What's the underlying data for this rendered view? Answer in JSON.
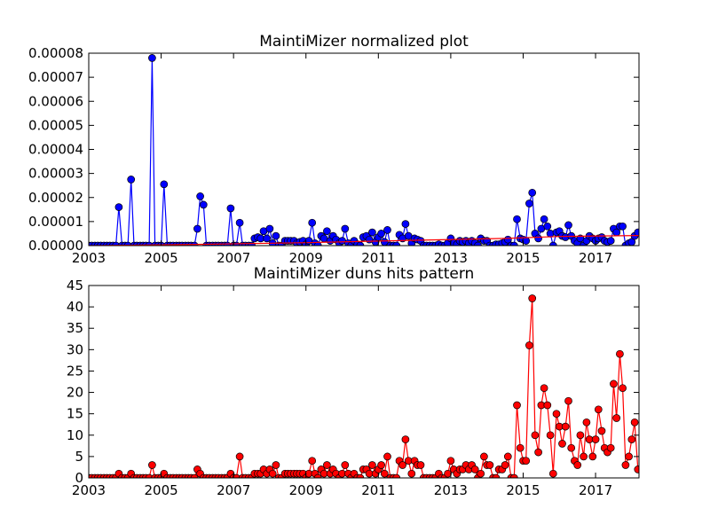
{
  "chart_data": [
    {
      "type": "line",
      "title": "MaintiMizer normalized plot",
      "xlim": [
        2003.0,
        2018.2
      ],
      "ylim": [
        0,
        8e-05
      ],
      "xticks": [
        "2003",
        "2005",
        "2007",
        "2009",
        "2011",
        "2013",
        "2015",
        "2017"
      ],
      "yticks": [
        "0.00000",
        "0.00001",
        "0.00002",
        "0.00003",
        "0.00004",
        "0.00005",
        "0.00006",
        "0.00007",
        "0.00008"
      ],
      "grid": false,
      "series": [
        {
          "color": "#0000ff",
          "marker": "circle",
          "x": [
            2003.0,
            2003.08,
            2003.17,
            2003.25,
            2003.33,
            2003.42,
            2003.5,
            2003.58,
            2003.67,
            2003.75,
            2003.83,
            2003.92,
            2004.0,
            2004.08,
            2004.17,
            2004.25,
            2004.33,
            2004.42,
            2004.5,
            2004.58,
            2004.67,
            2004.75,
            2004.83,
            2004.92,
            2005.0,
            2005.08,
            2005.17,
            2005.25,
            2005.33,
            2005.42,
            2005.5,
            2005.58,
            2005.67,
            2005.75,
            2005.83,
            2005.92,
            2006.0,
            2006.08,
            2006.17,
            2006.25,
            2006.33,
            2006.42,
            2006.5,
            2006.58,
            2006.67,
            2006.75,
            2006.83,
            2006.92,
            2007.0,
            2007.08,
            2007.17,
            2007.25,
            2007.33,
            2007.42,
            2007.5,
            2007.58,
            2007.67,
            2007.75,
            2007.83,
            2007.92,
            2008.0,
            2008.08,
            2008.17,
            2008.25,
            2008.33,
            2008.42,
            2008.5,
            2008.58,
            2008.67,
            2008.75,
            2008.83,
            2008.92,
            2009.0,
            2009.08,
            2009.17,
            2009.25,
            2009.33,
            2009.42,
            2009.5,
            2009.58,
            2009.67,
            2009.75,
            2009.83,
            2009.92,
            2010.0,
            2010.08,
            2010.17,
            2010.25,
            2010.33,
            2010.42,
            2010.5,
            2010.58,
            2010.67,
            2010.75,
            2010.83,
            2010.92,
            2011.0,
            2011.08,
            2011.17,
            2011.25,
            2011.33,
            2011.42,
            2011.5,
            2011.58,
            2011.67,
            2011.75,
            2011.83,
            2011.92,
            2012.0,
            2012.08,
            2012.17,
            2012.25,
            2012.33,
            2012.42,
            2012.5,
            2012.58,
            2012.67,
            2012.75,
            2012.83,
            2012.92,
            2013.0,
            2013.08,
            2013.17,
            2013.25,
            2013.33,
            2013.42,
            2013.5,
            2013.58,
            2013.67,
            2013.75,
            2013.83,
            2013.92,
            2014.0,
            2014.08,
            2014.17,
            2014.25,
            2014.33,
            2014.42,
            2014.5,
            2014.58,
            2014.67,
            2014.75,
            2014.83,
            2014.92,
            2015.0,
            2015.08,
            2015.17,
            2015.25,
            2015.33,
            2015.42,
            2015.5,
            2015.58,
            2015.67,
            2015.75,
            2015.83,
            2015.92,
            2016.0,
            2016.08,
            2016.17,
            2016.25,
            2016.33,
            2016.42,
            2016.5,
            2016.58,
            2016.67,
            2016.75,
            2016.83,
            2016.92,
            2017.0,
            2017.08,
            2017.17,
            2017.25,
            2017.33,
            2017.42,
            2017.5,
            2017.58,
            2017.67,
            2017.75,
            2017.83,
            2017.92,
            2018.0,
            2018.08,
            2018.17
          ],
          "y": [
            0,
            0,
            0,
            0,
            0,
            0,
            0,
            0,
            0,
            0,
            1.6e-05,
            0,
            0,
            0,
            2.75e-05,
            0,
            0,
            0,
            0,
            0,
            0,
            7.8e-05,
            0,
            0,
            0,
            2.55e-05,
            0,
            0,
            0,
            0,
            0,
            0,
            0,
            0,
            0,
            0,
            7e-06,
            2.05e-05,
            1.7e-05,
            0,
            0,
            0,
            0,
            0,
            0,
            0,
            0,
            1.55e-05,
            0,
            0,
            9.5e-06,
            0,
            0,
            0,
            0,
            3e-06,
            3.5e-06,
            3e-06,
            6e-06,
            3e-06,
            7e-06,
            1e-06,
            4e-06,
            0,
            0,
            2e-06,
            2e-06,
            2e-06,
            2e-06,
            1e-06,
            1.5e-06,
            2e-06,
            5e-07,
            2e-06,
            9.5e-06,
            1e-06,
            0,
            4e-06,
            3e-06,
            6e-06,
            2e-06,
            4e-06,
            2.5e-06,
            1e-06,
            2e-06,
            7e-06,
            1e-06,
            0,
            2e-06,
            5e-07,
            0,
            3.5e-06,
            4e-06,
            2.5e-06,
            5.5e-06,
            1.5e-06,
            3.5e-06,
            5e-06,
            1.5e-06,
            6.5e-06,
            0,
            0,
            0,
            4.5e-06,
            3e-06,
            9e-06,
            4e-06,
            1e-06,
            3e-06,
            2.5e-06,
            2e-06,
            0,
            0,
            0,
            0,
            0,
            5e-07,
            0,
            0,
            1e-06,
            3e-06,
            1e-06,
            5e-07,
            2e-06,
            1.5e-06,
            2e-06,
            1e-06,
            2e-06,
            1e-06,
            0,
            3e-06,
            2e-06,
            2e-06,
            0,
            0,
            5e-07,
            5e-07,
            1e-06,
            1.5e-06,
            2.5e-06,
            0,
            0,
            1.1e-05,
            3e-06,
            2.5e-06,
            2e-06,
            1.75e-05,
            2.2e-05,
            5e-06,
            3e-06,
            7e-06,
            1.1e-05,
            8e-06,
            5e-06,
            0,
            5.5e-06,
            6e-06,
            4e-06,
            3.5e-06,
            8.5e-06,
            4e-06,
            2e-06,
            1e-06,
            3e-06,
            0,
            2e-06,
            4e-06,
            3e-06,
            2e-06,
            3e-06,
            3.5e-06,
            2e-06,
            1.5e-06,
            2e-06,
            7e-06,
            5.5e-06,
            8e-06,
            8e-06,
            0,
            1e-06,
            1.5e-06,
            4e-06,
            5.5e-06
          ]
        },
        {
          "color": "#ff0000",
          "marker": "none",
          "x": [
            2003.0,
            2006.0,
            2009.0,
            2012.0,
            2014.5,
            2016.0,
            2018.2
          ],
          "y": [
            0,
            5e-07,
            1.2e-06,
            2.2e-06,
            3e-06,
            3.8e-06,
            4.2e-06
          ]
        }
      ]
    },
    {
      "type": "line",
      "title": "MaintiMizer duns hits pattern",
      "xlim": [
        2003.0,
        2018.2
      ],
      "ylim": [
        0,
        45
      ],
      "xticks": [
        "2003",
        "2005",
        "2007",
        "2009",
        "2011",
        "2013",
        "2015",
        "2017"
      ],
      "yticks": [
        "0",
        "5",
        "10",
        "15",
        "20",
        "25",
        "30",
        "35",
        "40",
        "45"
      ],
      "grid": false,
      "series": [
        {
          "color": "#ff0000",
          "marker": "circle",
          "x": [
            2003.0,
            2003.08,
            2003.17,
            2003.25,
            2003.33,
            2003.42,
            2003.5,
            2003.58,
            2003.67,
            2003.75,
            2003.83,
            2003.92,
            2004.0,
            2004.08,
            2004.17,
            2004.25,
            2004.33,
            2004.42,
            2004.5,
            2004.58,
            2004.67,
            2004.75,
            2004.83,
            2004.92,
            2005.0,
            2005.08,
            2005.17,
            2005.25,
            2005.33,
            2005.42,
            2005.5,
            2005.58,
            2005.67,
            2005.75,
            2005.83,
            2005.92,
            2006.0,
            2006.08,
            2006.17,
            2006.25,
            2006.33,
            2006.42,
            2006.5,
            2006.58,
            2006.67,
            2006.75,
            2006.83,
            2006.92,
            2007.0,
            2007.08,
            2007.17,
            2007.25,
            2007.33,
            2007.42,
            2007.5,
            2007.58,
            2007.67,
            2007.75,
            2007.83,
            2007.92,
            2008.0,
            2008.08,
            2008.17,
            2008.25,
            2008.33,
            2008.42,
            2008.5,
            2008.58,
            2008.67,
            2008.75,
            2008.83,
            2008.92,
            2009.0,
            2009.08,
            2009.17,
            2009.25,
            2009.33,
            2009.42,
            2009.5,
            2009.58,
            2009.67,
            2009.75,
            2009.83,
            2009.92,
            2010.0,
            2010.08,
            2010.17,
            2010.25,
            2010.33,
            2010.42,
            2010.5,
            2010.58,
            2010.67,
            2010.75,
            2010.83,
            2010.92,
            2011.0,
            2011.08,
            2011.17,
            2011.25,
            2011.33,
            2011.42,
            2011.5,
            2011.58,
            2011.67,
            2011.75,
            2011.83,
            2011.92,
            2012.0,
            2012.08,
            2012.17,
            2012.25,
            2012.33,
            2012.42,
            2012.5,
            2012.58,
            2012.67,
            2012.75,
            2012.83,
            2012.92,
            2013.0,
            2013.08,
            2013.17,
            2013.25,
            2013.33,
            2013.42,
            2013.5,
            2013.58,
            2013.67,
            2013.75,
            2013.83,
            2013.92,
            2014.0,
            2014.08,
            2014.17,
            2014.25,
            2014.33,
            2014.42,
            2014.5,
            2014.58,
            2014.67,
            2014.75,
            2014.83,
            2014.92,
            2015.0,
            2015.08,
            2015.17,
            2015.25,
            2015.33,
            2015.42,
            2015.5,
            2015.58,
            2015.67,
            2015.75,
            2015.83,
            2015.92,
            2016.0,
            2016.08,
            2016.17,
            2016.25,
            2016.33,
            2016.42,
            2016.5,
            2016.58,
            2016.67,
            2016.75,
            2016.83,
            2016.92,
            2017.0,
            2017.08,
            2017.17,
            2017.25,
            2017.33,
            2017.42,
            2017.5,
            2017.58,
            2017.67,
            2017.75,
            2017.83,
            2017.92,
            2018.0,
            2018.08,
            2018.17
          ],
          "y": [
            0,
            0,
            0,
            0,
            0,
            0,
            0,
            0,
            0,
            0,
            1,
            0,
            0,
            0,
            1,
            0,
            0,
            0,
            0,
            0,
            0,
            3,
            0,
            0,
            0,
            1,
            0,
            0,
            0,
            0,
            0,
            0,
            0,
            0,
            0,
            0,
            2,
            1,
            0,
            0,
            0,
            0,
            0,
            0,
            0,
            0,
            0,
            1,
            0,
            0,
            5,
            0,
            0,
            0,
            0,
            1,
            1,
            1,
            2,
            1,
            2,
            1,
            3,
            0,
            0,
            1,
            1,
            1,
            1,
            1,
            1,
            1,
            0,
            1,
            4,
            1,
            0,
            2,
            1,
            3,
            1,
            2,
            1,
            0,
            1,
            3,
            1,
            0,
            1,
            0,
            0,
            2,
            2,
            1,
            3,
            1,
            2,
            3,
            1,
            5,
            0,
            0,
            0,
            4,
            3,
            9,
            4,
            1,
            4,
            3,
            3,
            0,
            0,
            0,
            0,
            0,
            1,
            0,
            0,
            1,
            4,
            2,
            1,
            2,
            2,
            3,
            2,
            3,
            2,
            0,
            1,
            5,
            3,
            3,
            0,
            0,
            2,
            2,
            3,
            5,
            0,
            0,
            17,
            7,
            4,
            4,
            31,
            42,
            10,
            6,
            17,
            21,
            17,
            10,
            1,
            15,
            12,
            8,
            12,
            18,
            7,
            4,
            3,
            10,
            5,
            13,
            9,
            5,
            9,
            16,
            11,
            7,
            6,
            7,
            22,
            14,
            29,
            21,
            3,
            5,
            9,
            13,
            2
          ]
        }
      ]
    }
  ]
}
